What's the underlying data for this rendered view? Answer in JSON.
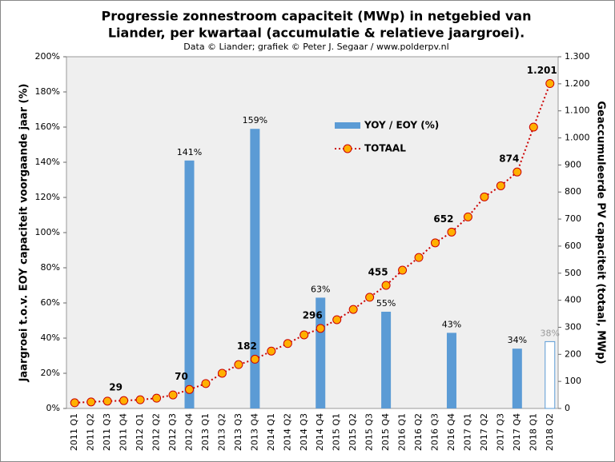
{
  "chart_data": {
    "type": "bar+line",
    "title": [
      "Progressie zonnestroom capaciteit (MWp) in netgebied van",
      "Liander, per kwartaal (accumulatie & relatieve jaargroei)."
    ],
    "subtitle": "Data © Liander; grafiek © Peter J. Segaar / www.polderpv.nl",
    "y_label": "Jaargroei t.o.v. EOY capaciteit voorgaande jaar (%)",
    "y2_label": "Geaccumuleerde PV capaciteit (totaal, MWp)",
    "categories": [
      "2011 Q1",
      "2011 Q2",
      "2011 Q3",
      "2011 Q4",
      "2012 Q1",
      "2012 Q2",
      "2012 Q3",
      "2012 Q4",
      "2013 Q1",
      "2013 Q2",
      "2013 Q3",
      "2013 Q4",
      "2014 Q1",
      "2014 Q2",
      "2014 Q3",
      "2014 Q4",
      "2015 Q1",
      "2015 Q2",
      "2015 Q3",
      "2015 Q4",
      "2016 Q1",
      "2016 Q2",
      "2016 Q3",
      "2016 Q4",
      "2017 Q1",
      "2017 Q2",
      "2017 Q3",
      "2017 Q4",
      "2018 Q1",
      "2018 Q2"
    ],
    "series": [
      {
        "name": "YOY / EOY (%)",
        "type": "bar",
        "color": "#5b9bd5",
        "hollow_last": true,
        "last_label_color": "#999999",
        "values": [
          null,
          null,
          null,
          null,
          null,
          null,
          null,
          141,
          null,
          null,
          null,
          159,
          null,
          null,
          null,
          63,
          null,
          null,
          null,
          55,
          null,
          null,
          null,
          43,
          null,
          null,
          null,
          34,
          null,
          38
        ],
        "value_labels": [
          null,
          null,
          null,
          null,
          null,
          null,
          null,
          "141%",
          null,
          null,
          null,
          "159%",
          null,
          null,
          null,
          "63%",
          null,
          null,
          null,
          "55%",
          null,
          null,
          null,
          "43%",
          null,
          null,
          null,
          "34%",
          null,
          "38%"
        ]
      },
      {
        "name": "TOTAAL",
        "type": "line",
        "axis": "y2",
        "color": "#cc0000",
        "marker_color": "#ffb000",
        "values": [
          21,
          24,
          27,
          29,
          32,
          38,
          50,
          70,
          92,
          130,
          162,
          182,
          212,
          240,
          272,
          296,
          328,
          366,
          411,
          455,
          511,
          558,
          612,
          652,
          708,
          782,
          823,
          874,
          1040,
          1201
        ],
        "value_labels": [
          null,
          null,
          null,
          "29",
          null,
          null,
          null,
          "70",
          null,
          null,
          null,
          "182",
          null,
          null,
          null,
          "296",
          null,
          null,
          null,
          "455",
          null,
          null,
          null,
          "652",
          null,
          null,
          null,
          "874",
          null,
          "1.201"
        ]
      }
    ],
    "ylim": [
      0,
      200
    ],
    "yticks": [
      {
        "value": 0,
        "label": "0%"
      },
      {
        "value": 20,
        "label": "20%"
      },
      {
        "value": 40,
        "label": "40%"
      },
      {
        "value": 60,
        "label": "60%"
      },
      {
        "value": 80,
        "label": "80%"
      },
      {
        "value": 100,
        "label": "100%"
      },
      {
        "value": 120,
        "label": "120%"
      },
      {
        "value": 140,
        "label": "140%"
      },
      {
        "value": 160,
        "label": "160%"
      },
      {
        "value": 180,
        "label": "180%"
      },
      {
        "value": 200,
        "label": "200%"
      }
    ],
    "y2lim": [
      0,
      1300
    ],
    "y2ticks": [
      0,
      100,
      200,
      300,
      400,
      500,
      600,
      700,
      800,
      900,
      {
        "value": 1000,
        "label": "1.000"
      },
      {
        "value": 1100,
        "label": "1.100"
      },
      {
        "value": 1200,
        "label": "1.200"
      },
      {
        "value": 1300,
        "label": "1.300"
      }
    ]
  }
}
